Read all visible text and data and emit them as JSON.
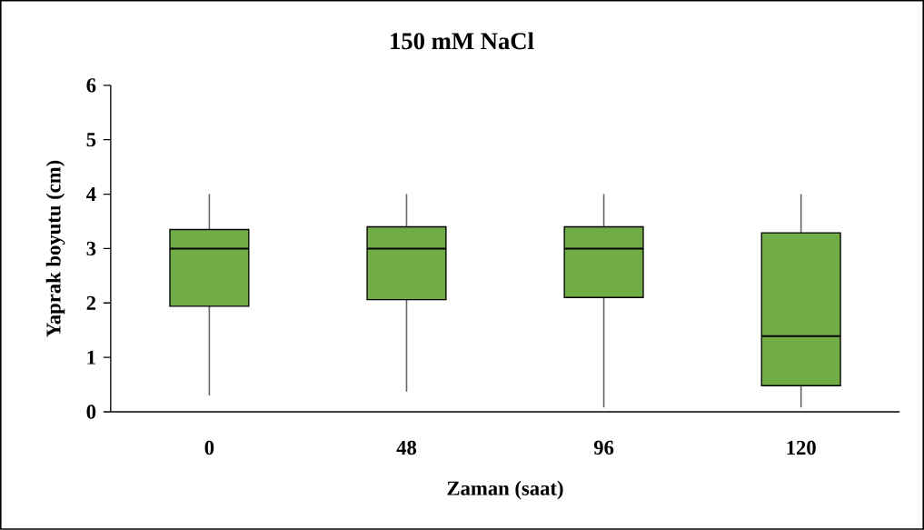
{
  "chart_data": {
    "type": "box",
    "title": "150 mM NaCl",
    "xlabel": "Zaman (saat)",
    "ylabel": "Yaprak boyutu (cm)",
    "categories": [
      "0",
      "48",
      "96",
      "120"
    ],
    "color": "#70ad47",
    "boxes": [
      {
        "low": 0.3,
        "q1": 1.94,
        "median": 3.0,
        "q3": 3.35,
        "high": 4.0
      },
      {
        "low": 0.37,
        "q1": 2.06,
        "median": 3.0,
        "q3": 3.4,
        "high": 4.0
      },
      {
        "low": 0.08,
        "q1": 2.1,
        "median": 3.0,
        "q3": 3.4,
        "high": 4.0
      },
      {
        "low": 0.08,
        "q1": 0.48,
        "median": 1.39,
        "q3": 3.29,
        "high": 4.0
      }
    ],
    "ylim": [
      0,
      6
    ],
    "yticks": [
      0,
      1,
      2,
      3,
      4,
      5,
      6
    ]
  }
}
